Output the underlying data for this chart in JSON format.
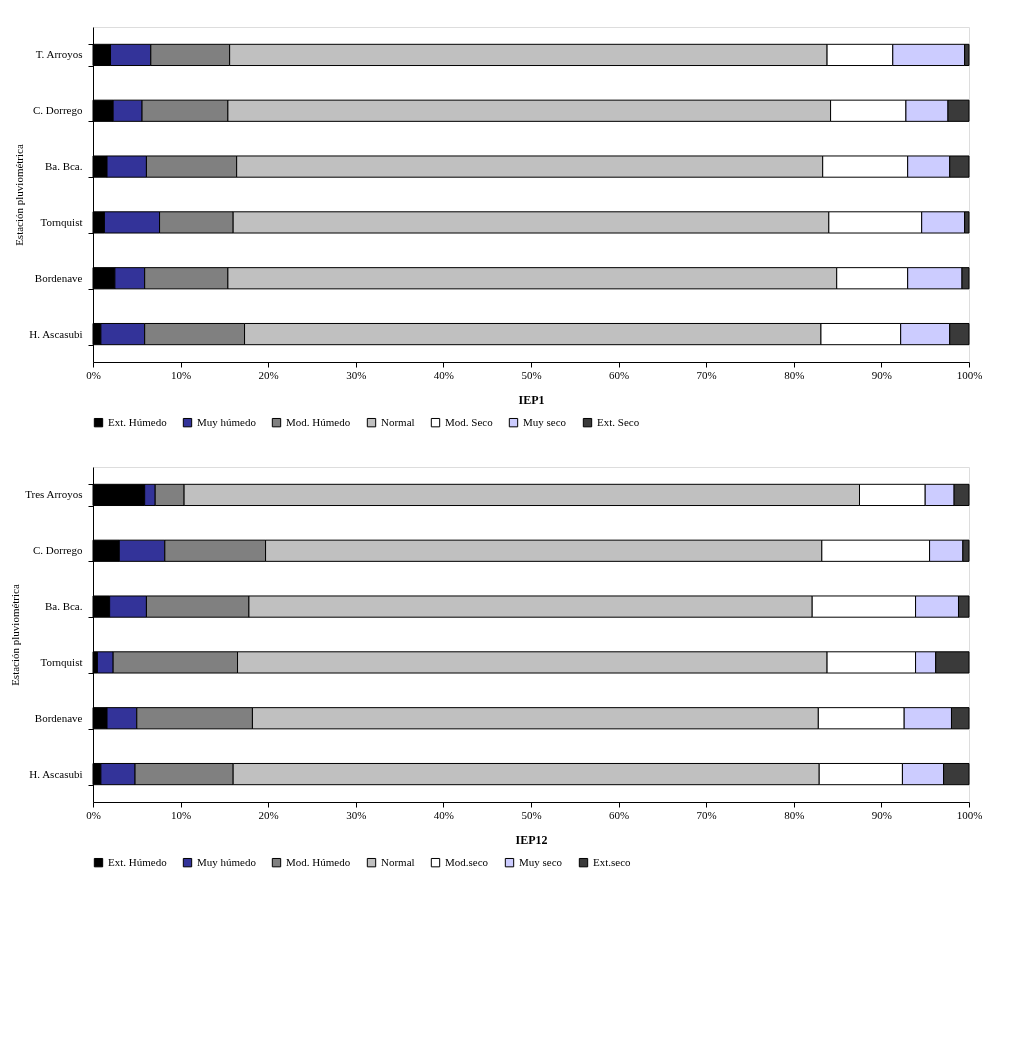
{
  "chart_data": [
    {
      "type": "bar",
      "orientation": "horizontal",
      "stacked": true,
      "xlabel": "IEP1",
      "ylabel": "Estación pluviométrica",
      "legend": "bottom",
      "grid": false,
      "categories": [
        "T. Arroyos",
        "C. Dorrego",
        "Ba. Bca.",
        "Tornquist",
        "Bordenave",
        "H. Ascasubi"
      ],
      "xlim": [
        0,
        100
      ],
      "xticks": [
        {
          "value": 0,
          "label": "0%"
        },
        {
          "value": 10,
          "label": "10%"
        },
        {
          "value": 20,
          "label": "20%"
        },
        {
          "value": 30,
          "label": "30%"
        },
        {
          "value": 40,
          "label": "40%"
        },
        {
          "value": 50,
          "label": "50%"
        },
        {
          "value": 60,
          "label": "60%"
        },
        {
          "value": 70,
          "label": "70%"
        },
        {
          "value": 80,
          "label": "80%"
        },
        {
          "value": 90,
          "label": "90%"
        },
        {
          "value": 100,
          "label": "100%"
        }
      ],
      "series": [
        {
          "name": "Ext. Húmedo",
          "color": "#000000",
          "values": [
            2.0,
            2.3,
            1.6,
            1.3,
            2.5,
            0.9
          ]
        },
        {
          "name": "Muy húmedo",
          "color": "#333399",
          "values": [
            4.6,
            3.3,
            4.5,
            6.3,
            3.4,
            5.0
          ]
        },
        {
          "name": "Mod. Húmedo",
          "color": "#808080",
          "values": [
            9.0,
            9.8,
            10.3,
            8.4,
            9.5,
            11.4
          ]
        },
        {
          "name": "Normal",
          "color": "#c0c0c0",
          "values": [
            68.2,
            68.8,
            66.9,
            68.0,
            69.5,
            65.8
          ]
        },
        {
          "name": "Mod. Seco",
          "color": "#ffffff",
          "values": [
            7.5,
            8.6,
            9.7,
            10.6,
            8.1,
            9.1
          ]
        },
        {
          "name": "Muy seco",
          "color": "#ccccff",
          "values": [
            8.2,
            4.8,
            4.8,
            4.9,
            6.2,
            5.6
          ]
        },
        {
          "name": "Ext. Seco",
          "color": "#3a3a3a",
          "values": [
            0.5,
            2.4,
            2.2,
            0.5,
            0.8,
            2.2
          ]
        }
      ]
    },
    {
      "type": "bar",
      "orientation": "horizontal",
      "stacked": true,
      "xlabel": "IEP12",
      "ylabel": "Estación pluviométrica",
      "legend": "bottom",
      "grid": false,
      "categories": [
        "Tres Arroyos",
        "C. Dorrego",
        "Ba. Bca.",
        "Tornquist",
        "Bordenave",
        "H. Ascasubi"
      ],
      "xlim": [
        0,
        100
      ],
      "xticks": [
        {
          "value": 0,
          "label": "0%"
        },
        {
          "value": 10,
          "label": "10%"
        },
        {
          "value": 20,
          "label": "20%"
        },
        {
          "value": 30,
          "label": "30%"
        },
        {
          "value": 40,
          "label": "40%"
        },
        {
          "value": 50,
          "label": "50%"
        },
        {
          "value": 60,
          "label": "60%"
        },
        {
          "value": 70,
          "label": "70%"
        },
        {
          "value": 80,
          "label": "80%"
        },
        {
          "value": 90,
          "label": "90%"
        },
        {
          "value": 100,
          "label": "100%"
        }
      ],
      "series": [
        {
          "name": "Ext. Húmedo",
          "color": "#000000",
          "values": [
            5.9,
            3.0,
            1.9,
            0.5,
            1.6,
            0.9
          ]
        },
        {
          "name": "Muy húmedo",
          "color": "#333399",
          "values": [
            1.2,
            5.2,
            4.2,
            1.8,
            3.4,
            3.9
          ]
        },
        {
          "name": "Mod. Húmedo",
          "color": "#808080",
          "values": [
            3.3,
            11.5,
            11.7,
            14.2,
            13.2,
            11.2
          ]
        },
        {
          "name": "Normal",
          "color": "#c0c0c0",
          "values": [
            77.1,
            63.5,
            64.3,
            67.3,
            64.6,
            66.9
          ]
        },
        {
          "name": "Mod.seco",
          "color": "#ffffff",
          "values": [
            7.5,
            12.3,
            11.8,
            10.1,
            9.8,
            9.5
          ]
        },
        {
          "name": "Muy seco",
          "color": "#ccccff",
          "values": [
            3.3,
            3.8,
            4.9,
            2.3,
            5.4,
            4.7
          ]
        },
        {
          "name": "Ext.seco",
          "color": "#3a3a3a",
          "values": [
            1.7,
            0.7,
            1.2,
            3.8,
            2.0,
            2.9
          ]
        }
      ]
    }
  ]
}
